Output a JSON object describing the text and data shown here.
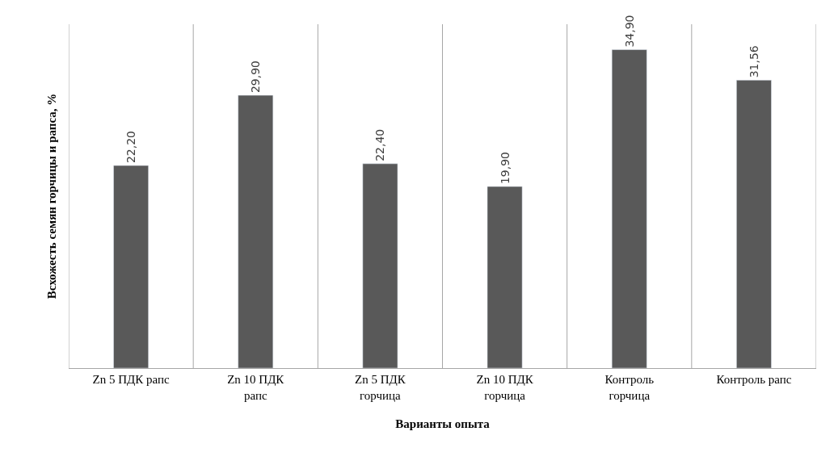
{
  "chart_data": {
    "type": "bar",
    "xlabel": "Варианты опыта",
    "ylabel": "Всхожесть семян горчицы и рапса, %",
    "categories": [
      "Zn 5 ПДК рапс",
      "Zn 10 ПДК\nрапс",
      "Zn 5 ПДК\nгорчица",
      "Zn 10 ПДК\nгорчица",
      "Контроль\nгорчица",
      "Контроль рапс"
    ],
    "values": [
      22.2,
      29.9,
      22.4,
      19.9,
      34.9,
      31.56
    ],
    "value_labels": [
      "22,20",
      "29,90",
      "22,40",
      "19,90",
      "34,90",
      "31,56"
    ],
    "color": "#595959",
    "grid": "x",
    "legend": false
  }
}
